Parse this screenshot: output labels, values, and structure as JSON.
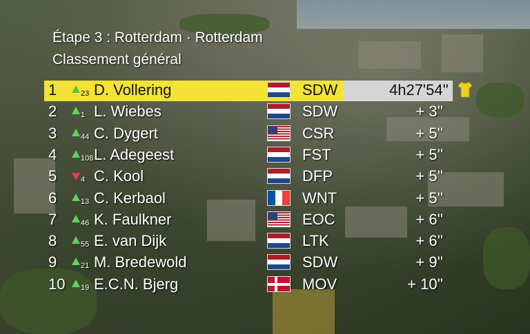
{
  "header": {
    "stage_title": "Étape 3 : Rotterdam · Rotterdam",
    "classification": "Classement général"
  },
  "colors": {
    "leader_bar": "#f2e335",
    "leader_time_box": "#d5d5d5",
    "arrow_up": "#5fd35a",
    "arrow_down": "#e04040"
  },
  "standings": [
    {
      "pos": "1",
      "dir": "up",
      "chg": "23",
      "name": "D. Vollering",
      "flag": "nl",
      "team": "SDW",
      "time": "4h27'54''",
      "leader": true
    },
    {
      "pos": "2",
      "dir": "up",
      "chg": "1",
      "name": "L. Wiebes",
      "flag": "nl",
      "team": "SDW",
      "time": "+ 3''"
    },
    {
      "pos": "3",
      "dir": "up",
      "chg": "44",
      "name": "C. Dygert",
      "flag": "us",
      "team": "CSR",
      "time": "+ 5''"
    },
    {
      "pos": "4",
      "dir": "up",
      "chg": "108",
      "name": "L. Adegeest",
      "flag": "nl",
      "team": "FST",
      "time": "+ 5''"
    },
    {
      "pos": "5",
      "dir": "down",
      "chg": "4",
      "name": "C. Kool",
      "flag": "nl",
      "team": "DFP",
      "time": "+ 5''"
    },
    {
      "pos": "6",
      "dir": "up",
      "chg": "13",
      "name": "C. Kerbaol",
      "flag": "fr",
      "team": "WNT",
      "time": "+ 5''"
    },
    {
      "pos": "7",
      "dir": "up",
      "chg": "46",
      "name": "K. Faulkner",
      "flag": "us",
      "team": "EOC",
      "time": "+ 6''"
    },
    {
      "pos": "8",
      "dir": "up",
      "chg": "55",
      "name": "E. van Dijk",
      "flag": "nl",
      "team": "LTK",
      "time": "+ 6''"
    },
    {
      "pos": "9",
      "dir": "up",
      "chg": "21",
      "name": "M. Bredewold",
      "flag": "nl",
      "team": "SDW",
      "time": "+ 9''"
    },
    {
      "pos": "10",
      "dir": "up",
      "chg": "19",
      "name": "E.C.N. Bjerg",
      "flag": "dk",
      "team": "MOV",
      "time": "+ 10''"
    }
  ],
  "icons": {
    "leader_jersey": "yellow-jersey-icon"
  }
}
